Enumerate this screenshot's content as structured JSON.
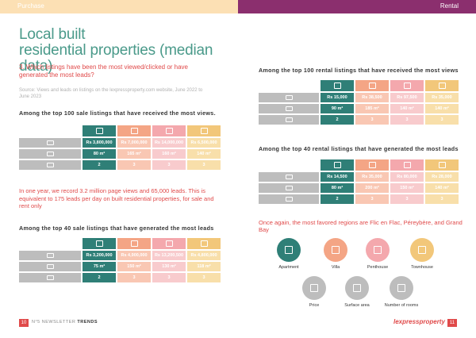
{
  "header": {
    "left_label": "Purchase",
    "right_label": "Rental"
  },
  "title": {
    "line1": "Local built",
    "line2": "residential properties (median data)"
  },
  "question": "3. Which listings have been the most viewed/clicked or have generated the most leads?",
  "source": "Source: Views and leads on listings on the lexpressproperty.com website, June 2022 to June 2023",
  "sale_views": {
    "heading": "Among the top 100 sale listings that have received the most views.",
    "rows": {
      "price": [
        "Rs 3,800,000",
        "Rs 7,000,000",
        "Rs 14,000,000",
        "Rs 6,500,000"
      ],
      "area": [
        "80 m²",
        "165 m²",
        "160 m²",
        "140 m²"
      ],
      "rooms": [
        "2",
        "3",
        "3",
        "3"
      ]
    }
  },
  "lead_text": "In one year, we record 3.2 million page views and 65,000 leads. This is equivalent to 175 leads per day on built residential properties, for sale and rent only",
  "sale_leads": {
    "heading": "Among the top 40 sale listings that have generated the most leads",
    "rows": {
      "price": [
        "Rs 3,200,000",
        "Rs 4,900,000",
        "Rs 13,200,500",
        "Rs 4,800,000"
      ],
      "area": [
        "75 m²",
        "150 m²",
        "130 m²",
        "118 m²"
      ],
      "rooms": [
        "2",
        "3",
        "3",
        "3"
      ]
    }
  },
  "rent_views": {
    "heading": "Among the top 100 rental listings that have received the most views",
    "rows": {
      "price": [
        "Rs 15,000",
        "Rs 38,500",
        "Rs 97,500",
        "Rs 35,000"
      ],
      "area": [
        "90 m²",
        "185 m²",
        "140 m²",
        "140 m²"
      ],
      "rooms": [
        "2",
        "3",
        "3",
        "3"
      ]
    }
  },
  "rent_leads": {
    "heading": "Among the top 40 rental listings that have generated the most leads",
    "rows": {
      "price": [
        "Rs 14,500",
        "Rs 35,000",
        "Rs 80,000",
        "Rs 28,000"
      ],
      "area": [
        "80 m²",
        "200 m²",
        "150 m²",
        "140 m²"
      ],
      "rooms": [
        "2",
        "3",
        "3",
        "3"
      ]
    }
  },
  "favored": "Once again, the most favored regions are Flic en Flac, Péreybère, and Grand Bay",
  "legend": {
    "apartment": "Apartment",
    "villa": "Villa",
    "penthouse": "Penthouse",
    "townhouse": "Townhouse",
    "price": "Price",
    "surface": "Surface area",
    "rooms": "Number of rooms"
  },
  "footer": {
    "page_left": "10",
    "newsletter": "N°5 NEWSLETTER",
    "trends": "TRENDS",
    "logo": "lexpressproperty",
    "page_right": "11"
  },
  "colors": {
    "apartment": "#2f7f77",
    "villa": "#f4a585",
    "penthouse": "#f4a8ad",
    "townhouse": "#f2c77a",
    "accent_red": "#e04a4a",
    "title_teal": "#4a9a8a",
    "rental_purple": "#8b2f6e"
  }
}
